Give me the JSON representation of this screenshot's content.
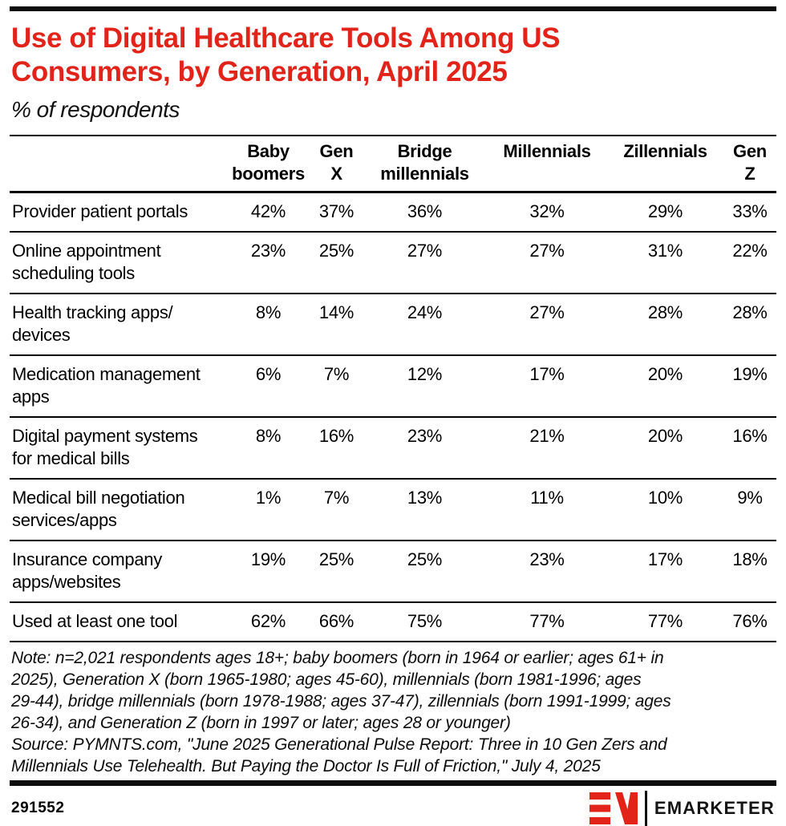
{
  "header": {
    "title": "Use of Digital Healthcare Tools Among US\nConsumers, by Generation, April 2025",
    "subtitle": "% of respondents",
    "title_color": "#e2231a"
  },
  "chart_data": {
    "type": "table",
    "title": "Use of Digital Healthcare Tools Among US Consumers, by Generation, April 2025",
    "subtitle": "% of respondents",
    "columns_plain": [
      "Baby boomers",
      "Gen X",
      "Bridge millennials",
      "Millennials",
      "Zillennials",
      "Gen Z"
    ],
    "columns": [
      "Baby\nboomers",
      "Gen\nX",
      "Bridge\nmillennials",
      "Millennials",
      "Zillennials",
      "Gen\nZ"
    ],
    "rows": [
      {
        "label": "Provider patient portals",
        "values": [
          "42%",
          "37%",
          "36%",
          "32%",
          "29%",
          "33%"
        ]
      },
      {
        "label": "Online appointment\nscheduling tools",
        "values": [
          "23%",
          "25%",
          "27%",
          "27%",
          "31%",
          "22%"
        ]
      },
      {
        "label": "Health tracking apps/\ndevices",
        "values": [
          "8%",
          "14%",
          "24%",
          "27%",
          "28%",
          "28%"
        ]
      },
      {
        "label": "Medication management\napps",
        "values": [
          "6%",
          "7%",
          "12%",
          "17%",
          "20%",
          "19%"
        ]
      },
      {
        "label": "Digital payment systems\nfor medical bills",
        "values": [
          "8%",
          "16%",
          "23%",
          "21%",
          "20%",
          "16%"
        ]
      },
      {
        "label": "Medical bill negotiation\nservices/apps",
        "values": [
          "1%",
          "7%",
          "13%",
          "11%",
          "10%",
          "9%"
        ]
      },
      {
        "label": "Insurance company\napps/websites",
        "values": [
          "19%",
          "25%",
          "25%",
          "23%",
          "17%",
          "18%"
        ]
      },
      {
        "label": "Used at least one tool",
        "values": [
          "62%",
          "66%",
          "75%",
          "77%",
          "77%",
          "76%"
        ]
      }
    ],
    "note": "Note: n=2,021 respondents ages 18+; baby boomers (born in 1964 or earlier; ages 61+ in\n2025), Generation X (born 1965-1980; ages 45-60), millennials (born 1981-1996; ages\n29-44), bridge millennials (born 1978-1988; ages 37-47), zillennials (born 1991-1999; ages\n26-34), and Generation Z (born in 1997 or later; ages 28 or younger)",
    "source": "Source: PYMNTS.com, \"June 2025 Generational Pulse Report: Three in 10 Gen Zers and\nMillennials Use Telehealth. But Paying the Doctor Is Full of Friction,\" July 4, 2025"
  },
  "footer": {
    "chart_id": "291552",
    "logo_text": "EMARKETER",
    "brand_color": "#e2231a"
  }
}
